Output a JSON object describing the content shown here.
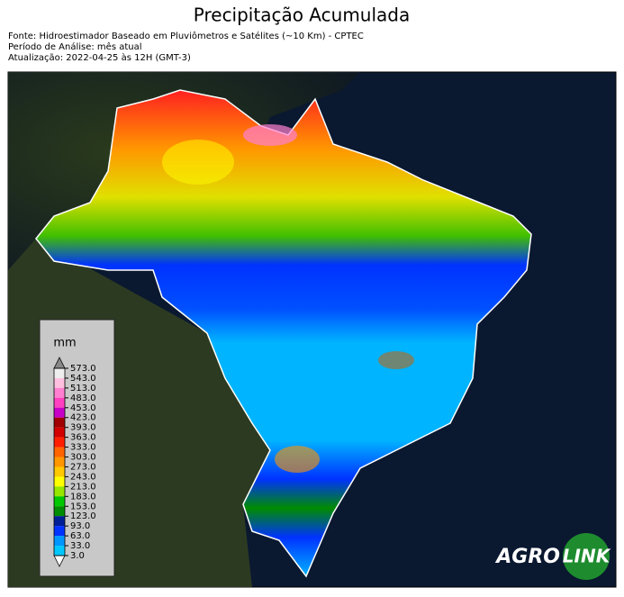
{
  "header": {
    "title": "Precipitação Acumulada",
    "lines": [
      "Fonte: Hidroestimador Baseado em Pluviômetros e Satélites (~10 Km) - CPTEC",
      "Período de Análise: mês atual",
      "Atualização: 2022-04-25 às 12H (GMT-3)"
    ]
  },
  "legend": {
    "unit": "mm",
    "ticks": [
      {
        "value": 573,
        "label": "573.0"
      },
      {
        "value": 543,
        "label": "543.0"
      },
      {
        "value": 513,
        "label": "513.0"
      },
      {
        "value": 483,
        "label": "483.0"
      },
      {
        "value": 453,
        "label": "453.0"
      },
      {
        "value": 423,
        "label": "423.0"
      },
      {
        "value": 393,
        "label": "393.0"
      },
      {
        "value": 363,
        "label": "363.0"
      },
      {
        "value": 333,
        "label": "333.0"
      },
      {
        "value": 303,
        "label": "303.0"
      },
      {
        "value": 273,
        "label": "273.0"
      },
      {
        "value": 243,
        "label": "243.0"
      },
      {
        "value": 213,
        "label": "213.0"
      },
      {
        "value": 183,
        "label": "183.0"
      },
      {
        "value": 153,
        "label": "153.0"
      },
      {
        "value": 123,
        "label": "123.0"
      },
      {
        "value": 93,
        "label": "93.0"
      },
      {
        "value": 63,
        "label": "63.0"
      },
      {
        "value": 33,
        "label": "33.0"
      },
      {
        "value": 3,
        "label": "3.0"
      }
    ],
    "colors": [
      "#eeeeee",
      "#ffc0e0",
      "#ff80d0",
      "#ff40c0",
      "#c800c8",
      "#a00000",
      "#d20000",
      "#ff1e00",
      "#ff6400",
      "#ff9600",
      "#ffc800",
      "#ffff00",
      "#96e600",
      "#00c800",
      "#008c00",
      "#001e96",
      "#0032ff",
      "#0096ff",
      "#00c8ff"
    ],
    "over_color": "#888888",
    "under_color": "#ffffff"
  },
  "logo": {
    "left": "AGRO",
    "right": "LINK"
  }
}
